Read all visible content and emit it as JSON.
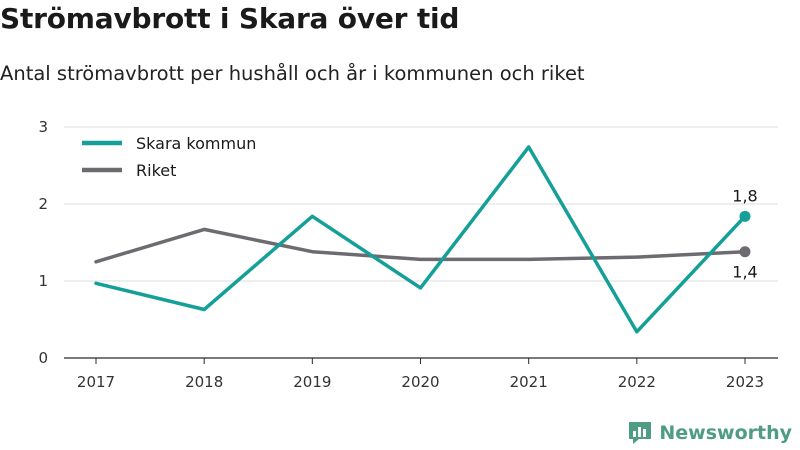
{
  "header": {
    "title": "Strömavbrott i Skara över tid",
    "subtitle": "Antal strömavbrott per hushåll och år i kommunen och riket"
  },
  "chart_data": {
    "type": "line",
    "x": [
      "2017",
      "2018",
      "2019",
      "2020",
      "2021",
      "2022",
      "2023"
    ],
    "series": [
      {
        "name": "Skara kommun",
        "color": "#14a098",
        "values": [
          0.97,
          0.63,
          1.84,
          0.91,
          2.74,
          0.34,
          1.84
        ]
      },
      {
        "name": "Riket",
        "color": "#6d6b70",
        "values": [
          1.25,
          1.67,
          1.38,
          1.28,
          1.28,
          1.31,
          1.38
        ]
      }
    ],
    "yticks": [
      0,
      1,
      2,
      3
    ],
    "ytick_labels": [
      "0",
      "1",
      "2",
      "3"
    ],
    "ylim": [
      0,
      3
    ],
    "end_labels": {
      "Skara kommun": "1,8",
      "Riket": "1,4"
    },
    "grid": true,
    "legend": "top-left"
  },
  "footer": {
    "brand": "Newsworthy",
    "brand_color": "#4f9c84",
    "brand_icon": "bar-chart-logo-icon"
  }
}
